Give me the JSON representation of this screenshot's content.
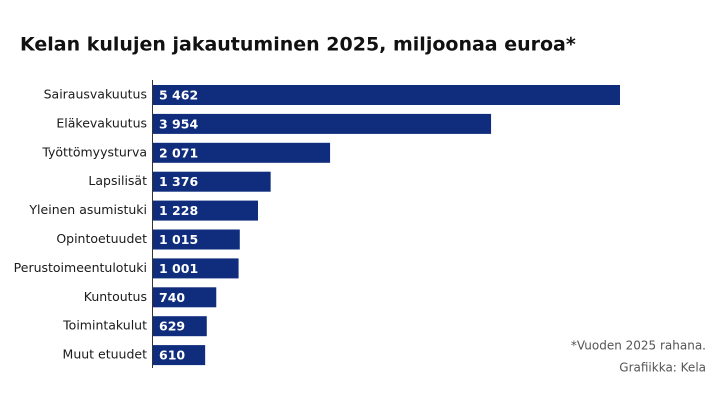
{
  "chart_data": {
    "type": "bar",
    "orientation": "horizontal",
    "title": "Kelan kulujen jakautuminen 2025, miljoonaa euroa*",
    "categories": [
      "Sairausvakuutus",
      "Eläkevakuutus",
      "Työttömyysturva",
      "Lapsilisät",
      "Yleinen asumistuki",
      "Opintoetuudet",
      "Perustoimeentulotuki",
      "Kuntoutus",
      "Toimintakulut",
      "Muut etuudet"
    ],
    "values": [
      5462,
      3954,
      2071,
      1376,
      1228,
      1015,
      1001,
      740,
      629,
      610
    ],
    "value_labels": [
      "5 462",
      "3 954",
      "2 071",
      "1 376",
      "1 228",
      "1 015",
      "1 001",
      "740",
      "629",
      "610"
    ],
    "color": "#0f2d7c",
    "notes": [
      "*Vuoden 2025 rahana.",
      "Grafiikka: Kela"
    ]
  }
}
